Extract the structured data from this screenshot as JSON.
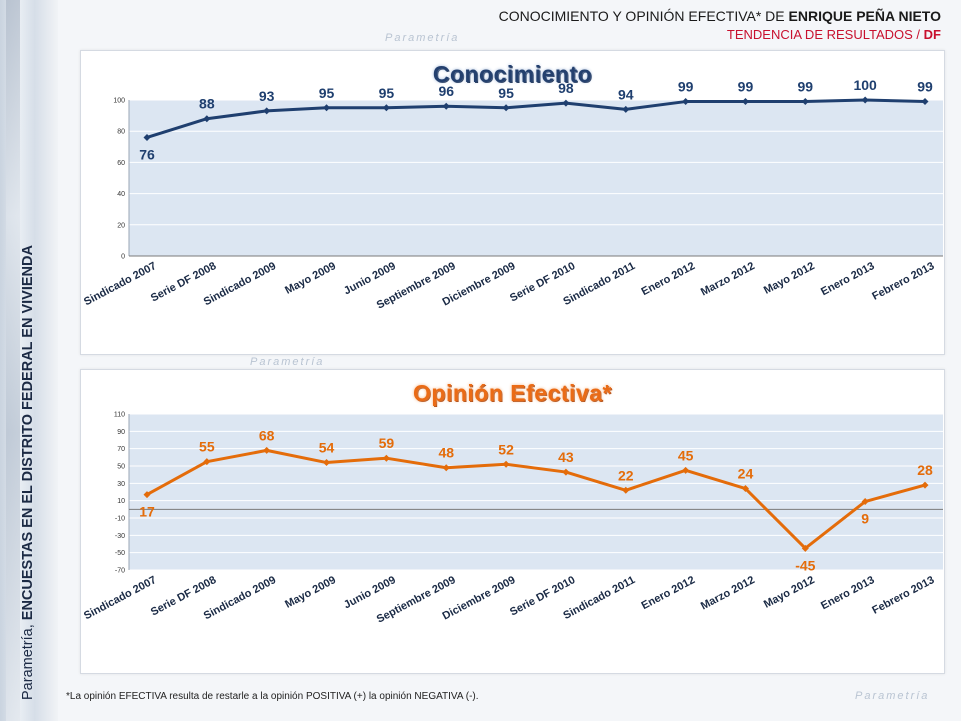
{
  "header": {
    "line1_prefix": "CONOCIMIENTO Y OPINIÓN EFECTIVA* DE ",
    "line1_bold": "ENRIQUE PEÑA NIETO",
    "line2_prefix": "TENDENCIA DE RESULTADOS / ",
    "line2_bold": "DF"
  },
  "side": {
    "prefix": "Parametría, ",
    "bold": "ENCUESTAS EN EL DISTRITO FEDERAL EN VIVIENDA"
  },
  "watermark": "Parametría",
  "footnote": "*La opinión EFECTIVA resulta de restarle a la opinión POSITIVA (+) la opinión NEGATIVA (-).",
  "colors": {
    "blue": "#1f3f6f",
    "orange": "#e46c0a",
    "plot_bg": "#dce6f2",
    "red": "#c8102e"
  },
  "chart_data": [
    {
      "type": "line",
      "title": "Conocimiento",
      "categories": [
        "Sindicado 2007",
        "Serie DF 2008",
        "Sindicado 2009",
        "Mayo 2009",
        "Junio 2009",
        "Septiembre 2009",
        "Diciembre 2009",
        "Serie DF 2010",
        "Sindicado 2011",
        "Enero 2012",
        "Marzo 2012",
        "Mayo 2012",
        "Enero 2013",
        "Febrero 2013"
      ],
      "values": [
        76,
        88,
        93,
        95,
        95,
        96,
        95,
        98,
        94,
        99,
        99,
        99,
        100,
        99
      ],
      "ylim": [
        0,
        100
      ],
      "yticks": [
        0,
        20,
        40,
        60,
        80,
        100
      ],
      "grid": true,
      "color": "#1f3f6f"
    },
    {
      "type": "line",
      "title": "Opinión Efectiva*",
      "categories": [
        "Sindicado 2007",
        "Serie DF 2008",
        "Sindicado 2009",
        "Mayo 2009",
        "Junio 2009",
        "Septiembre 2009",
        "Diciembre 2009",
        "Serie DF 2010",
        "Sindicado 2011",
        "Enero 2012",
        "Marzo 2012",
        "Mayo 2012",
        "Enero 2013",
        "Febrero 2013"
      ],
      "values": [
        17,
        55,
        68,
        54,
        59,
        48,
        52,
        43,
        22,
        45,
        24,
        -45,
        9,
        28
      ],
      "ylim": [
        -70,
        110
      ],
      "yticks": [
        -70,
        -50,
        -30,
        -10,
        10,
        30,
        50,
        70,
        90,
        110
      ],
      "grid": true,
      "color": "#e46c0a"
    }
  ]
}
